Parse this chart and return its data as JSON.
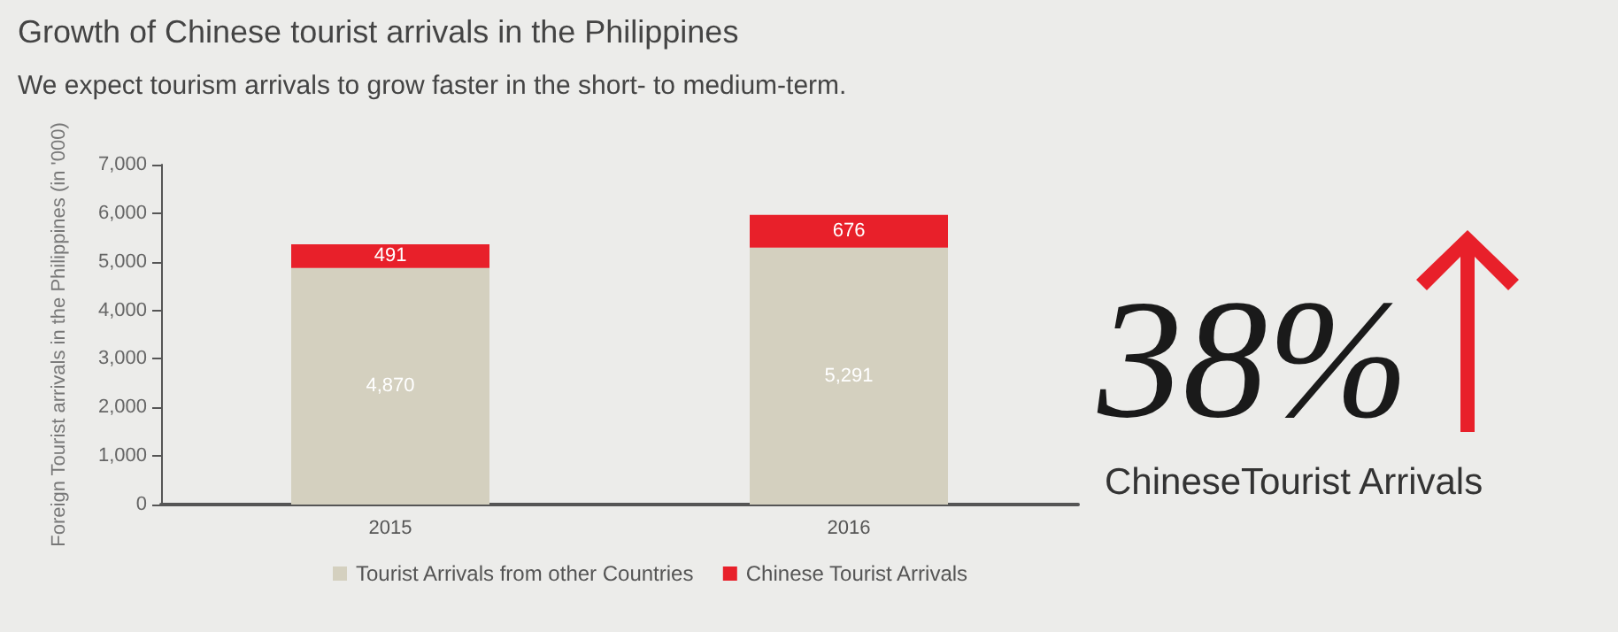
{
  "chart_data": {
    "type": "bar",
    "title": "Growth of Chinese tourist arrivals in the Philippines",
    "subtitle": "We expect tourism arrivals to grow faster in the short- to medium-term.",
    "ylabel": "Foreign Tourist arrivals in the Philippines (in '000)",
    "categories": [
      "2015",
      "2016"
    ],
    "series": [
      {
        "name": "Tourist Arrivals from other Countries",
        "color": "#d4d0bf",
        "values": [
          4870,
          5291
        ],
        "value_labels": [
          "4,870",
          "5,291"
        ]
      },
      {
        "name": "Chinese Tourist Arrivals",
        "color": "#e8202a",
        "values": [
          491,
          676
        ],
        "value_labels": [
          "491",
          "676"
        ]
      }
    ],
    "stacked": true,
    "ylim": [
      0,
      7000
    ],
    "yticks": [
      {
        "value": 0,
        "label": "0"
      },
      {
        "value": 1000,
        "label": "1,000"
      },
      {
        "value": 2000,
        "label": "2,000"
      },
      {
        "value": 3000,
        "label": "3,000"
      },
      {
        "value": 4000,
        "label": "4,000"
      },
      {
        "value": 5000,
        "label": "5,000"
      },
      {
        "value": 6000,
        "label": "6,000"
      },
      {
        "value": 7000,
        "label": "7,000"
      }
    ],
    "grid": false,
    "legend": "bottom",
    "annotations": [
      "38%",
      "ChineseTourist Arrivals"
    ]
  }
}
